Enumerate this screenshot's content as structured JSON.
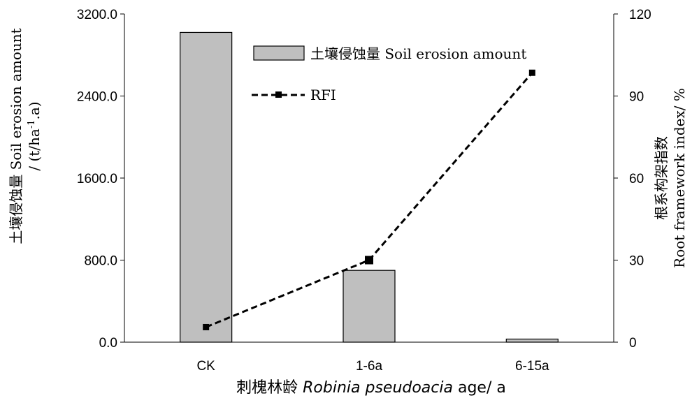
{
  "chart_data": {
    "type": "bar+line",
    "categories": [
      "CK",
      "1-6a",
      "6-15a"
    ],
    "bar_series": {
      "name": "土壤侵蚀量 Soil erosion amount",
      "axis": "left",
      "values": [
        3020,
        700,
        30
      ],
      "color": "#bfbfbf"
    },
    "line_series": {
      "name": "RFI",
      "axis": "right",
      "values": [
        5.5,
        30,
        98.5
      ],
      "color": "#000000",
      "style": "dashed"
    },
    "ylim_left": [
      0,
      3200
    ],
    "ylim_right": [
      0,
      120
    ],
    "yticks_left": [
      "0.0",
      "800.0",
      "1600.0",
      "2400.0",
      "3200.0"
    ],
    "yticks_right": [
      "0",
      "30",
      "60",
      "90",
      "120"
    ],
    "ylabel_left_line1": "土壤侵蚀量 Soil erosion amount",
    "ylabel_left_line2": "/ (t/ha",
    "ylabel_left_sup": "-1",
    "ylabel_left_line2_end": ".a)",
    "ylabel_right_line1": "根系构架指数",
    "ylabel_right_line2": "Root framework index/ %",
    "xlabel_prefix": "刺槐林龄 ",
    "xlabel_italic": "Robinia pseudoacia",
    "xlabel_suffix": " age/ a",
    "legend_position": "top-center",
    "grid": false
  }
}
